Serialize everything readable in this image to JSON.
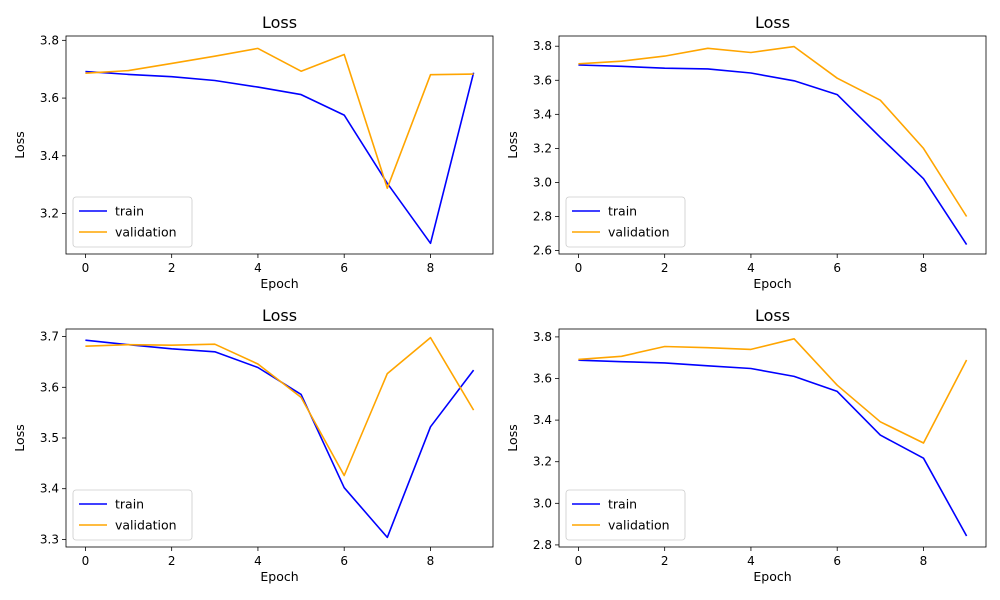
{
  "colors": {
    "train": "#0000ff",
    "validation": "#ffa500"
  },
  "chart_data": [
    {
      "type": "line",
      "title": "Loss",
      "xlabel": "Epoch",
      "ylabel": "Loss",
      "x": [
        0,
        1,
        2,
        3,
        4,
        5,
        6,
        7,
        8,
        9
      ],
      "xlim": [
        -0.45,
        9.45
      ],
      "ylim": [
        3.06,
        3.815
      ],
      "xticks": [
        "0",
        "2",
        "4",
        "6",
        "8"
      ],
      "yticks": [
        "3.2",
        "3.4",
        "3.6",
        "3.8"
      ],
      "legend": "lower-left",
      "grid": false,
      "series": [
        {
          "name": "train",
          "values": [
            3.692,
            3.682,
            3.674,
            3.661,
            3.638,
            3.612,
            3.541,
            3.305,
            3.097,
            3.688
          ]
        },
        {
          "name": "validation",
          "values": [
            3.686,
            3.695,
            3.72,
            3.745,
            3.772,
            3.693,
            3.751,
            3.288,
            3.681,
            3.683
          ]
        }
      ]
    },
    {
      "type": "line",
      "title": "Loss",
      "xlabel": "Epoch",
      "ylabel": "Loss",
      "x": [
        0,
        1,
        2,
        3,
        4,
        5,
        6,
        7,
        8,
        9
      ],
      "xlim": [
        -0.45,
        9.45
      ],
      "ylim": [
        2.58,
        3.86
      ],
      "xticks": [
        "0",
        "2",
        "4",
        "6",
        "8"
      ],
      "yticks": [
        "2.6",
        "2.8",
        "3.0",
        "3.2",
        "3.4",
        "3.6",
        "3.8"
      ],
      "legend": "lower-left",
      "grid": false,
      "series": [
        {
          "name": "train",
          "values": [
            3.69,
            3.682,
            3.671,
            3.667,
            3.643,
            3.597,
            3.516,
            3.265,
            3.022,
            2.635
          ]
        },
        {
          "name": "validation",
          "values": [
            3.697,
            3.712,
            3.742,
            3.788,
            3.763,
            3.798,
            3.612,
            3.483,
            3.2,
            2.8
          ]
        }
      ]
    },
    {
      "type": "line",
      "title": "Loss",
      "xlabel": "Epoch",
      "ylabel": "Loss",
      "x": [
        0,
        1,
        2,
        3,
        4,
        5,
        6,
        7,
        8,
        9
      ],
      "xlim": [
        -0.45,
        9.45
      ],
      "ylim": [
        3.285,
        3.715
      ],
      "xticks": [
        "0",
        "2",
        "4",
        "6",
        "8"
      ],
      "yticks": [
        "3.3",
        "3.4",
        "3.5",
        "3.6",
        "3.7"
      ],
      "legend": "lower-left",
      "grid": false,
      "series": [
        {
          "name": "train",
          "values": [
            3.693,
            3.684,
            3.676,
            3.67,
            3.639,
            3.586,
            3.402,
            3.304,
            3.522,
            3.634
          ]
        },
        {
          "name": "validation",
          "values": [
            3.681,
            3.684,
            3.683,
            3.685,
            3.646,
            3.58,
            3.426,
            3.627,
            3.698,
            3.555
          ]
        }
      ]
    },
    {
      "type": "line",
      "title": "Loss",
      "xlabel": "Epoch",
      "ylabel": "Loss",
      "x": [
        0,
        1,
        2,
        3,
        4,
        5,
        6,
        7,
        8,
        9
      ],
      "xlim": [
        -0.45,
        9.45
      ],
      "ylim": [
        2.79,
        3.838
      ],
      "xticks": [
        "0",
        "2",
        "4",
        "6",
        "8"
      ],
      "yticks": [
        "2.8",
        "3.0",
        "3.2",
        "3.4",
        "3.6",
        "3.8"
      ],
      "legend": "lower-left",
      "grid": false,
      "series": [
        {
          "name": "train",
          "values": [
            3.688,
            3.681,
            3.675,
            3.661,
            3.648,
            3.61,
            3.538,
            3.328,
            3.217,
            2.843
          ]
        },
        {
          "name": "validation",
          "values": [
            3.692,
            3.707,
            3.754,
            3.748,
            3.74,
            3.791,
            3.568,
            3.392,
            3.29,
            3.689
          ]
        }
      ]
    }
  ]
}
